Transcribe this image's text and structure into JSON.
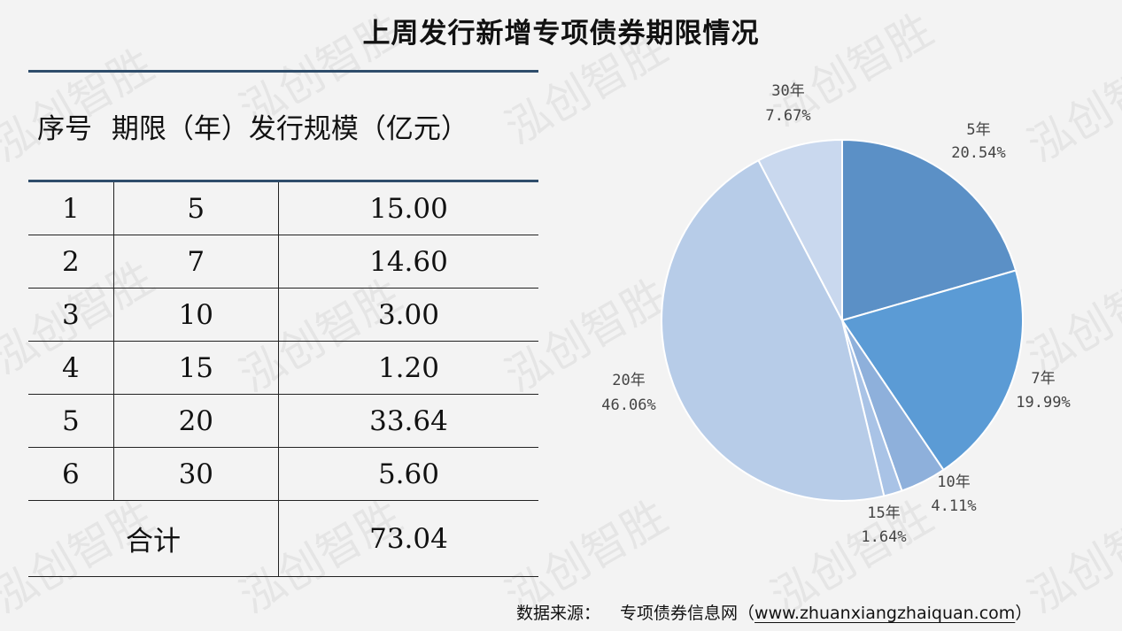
{
  "title": "上周发行新增专项债券期限情况",
  "watermark": "泓创智胜",
  "table": {
    "headers": [
      "序号",
      "期限（年）",
      "发行规模（亿元）"
    ],
    "rows": [
      {
        "index": "1",
        "term": "5",
        "amount": "15.00"
      },
      {
        "index": "2",
        "term": "7",
        "amount": "14.60"
      },
      {
        "index": "3",
        "term": "10",
        "amount": "3.00"
      },
      {
        "index": "4",
        "term": "15",
        "amount": "1.20"
      },
      {
        "index": "5",
        "term": "20",
        "amount": "33.64"
      },
      {
        "index": "6",
        "term": "30",
        "amount": "5.60"
      }
    ],
    "total_label": "合计",
    "total_value": "73.04"
  },
  "source": {
    "label": "数据来源：",
    "text": "专项债券信息网（",
    "link": "www.zhuanxiangzhaiquan.com",
    "close": "）"
  },
  "chart_data": {
    "type": "pie",
    "slices": [
      {
        "label": "5年",
        "percent": 20.54,
        "display": "20.54%",
        "color": "#5b90c6"
      },
      {
        "label": "7年",
        "percent": 19.99,
        "display": "19.99%",
        "color": "#5b9bd5"
      },
      {
        "label": "10年",
        "percent": 4.11,
        "display": "4.11%",
        "color": "#8eb0db"
      },
      {
        "label": "15年",
        "percent": 1.64,
        "display": "1.64%",
        "color": "#a9c3e6"
      },
      {
        "label": "20年",
        "percent": 46.06,
        "display": "46.06%",
        "color": "#b7cce8"
      },
      {
        "label": "30年",
        "percent": 7.67,
        "display": "7.67%",
        "color": "#c9d8ee"
      }
    ]
  }
}
